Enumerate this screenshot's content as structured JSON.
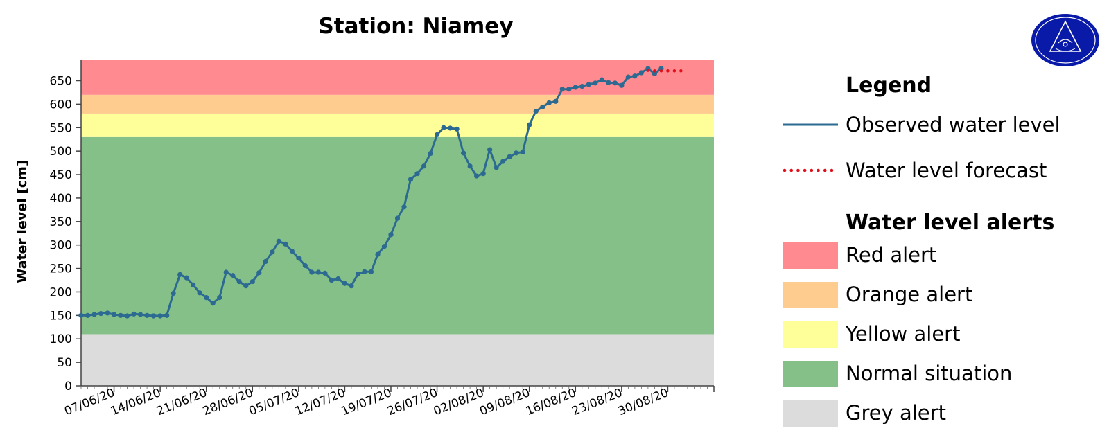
{
  "chart_data": {
    "type": "line",
    "title": "Station: Niamey",
    "xlabel": "",
    "ylabel": "Water level [cm]",
    "ylim": [
      0,
      695
    ],
    "xlim": [
      "2020-06-02",
      "2020-09-06"
    ],
    "y_ticks": [
      0,
      50,
      100,
      150,
      200,
      250,
      300,
      350,
      400,
      450,
      500,
      550,
      600,
      650
    ],
    "x_ticks": [
      {
        "date": "2020-06-07",
        "label": "07/06/20"
      },
      {
        "date": "2020-06-14",
        "label": "14/06/20"
      },
      {
        "date": "2020-06-21",
        "label": "21/06/20"
      },
      {
        "date": "2020-06-28",
        "label": "28/06/20"
      },
      {
        "date": "2020-07-05",
        "label": "05/07/20"
      },
      {
        "date": "2020-07-12",
        "label": "12/07/20"
      },
      {
        "date": "2020-07-19",
        "label": "19/07/20"
      },
      {
        "date": "2020-07-26",
        "label": "26/07/20"
      },
      {
        "date": "2020-08-02",
        "label": "02/08/20"
      },
      {
        "date": "2020-08-09",
        "label": "09/08/20"
      },
      {
        "date": "2020-08-16",
        "label": "16/08/20"
      },
      {
        "date": "2020-08-23",
        "label": "23/08/20"
      },
      {
        "date": "2020-08-30",
        "label": "30/08/20"
      }
    ],
    "alert_bands": [
      {
        "name": "Grey alert",
        "from": 0,
        "to": 110,
        "color": "#dcdcdc"
      },
      {
        "name": "Normal situation",
        "from": 110,
        "to": 530,
        "color": "#84c087"
      },
      {
        "name": "Yellow alert",
        "from": 530,
        "to": 580,
        "color": "#ffff99"
      },
      {
        "name": "Orange alert",
        "from": 580,
        "to": 620,
        "color": "#ffcc90"
      },
      {
        "name": "Red alert",
        "from": 620,
        "to": 695,
        "color": "#ff8a8f"
      }
    ],
    "series": [
      {
        "name": "Observed water level",
        "style": "solid-with-markers",
        "color": "#2c6a92",
        "points": [
          [
            "2020-06-02",
            150
          ],
          [
            "2020-06-03",
            150
          ],
          [
            "2020-06-04",
            152
          ],
          [
            "2020-06-05",
            154
          ],
          [
            "2020-06-06",
            155
          ],
          [
            "2020-06-07",
            152
          ],
          [
            "2020-06-08",
            150
          ],
          [
            "2020-06-09",
            149
          ],
          [
            "2020-06-10",
            153
          ],
          [
            "2020-06-11",
            152
          ],
          [
            "2020-06-12",
            150
          ],
          [
            "2020-06-13",
            149
          ],
          [
            "2020-06-14",
            149
          ],
          [
            "2020-06-15",
            150
          ],
          [
            "2020-06-16",
            197
          ],
          [
            "2020-06-17",
            237
          ],
          [
            "2020-06-18",
            230
          ],
          [
            "2020-06-19",
            215
          ],
          [
            "2020-06-20",
            198
          ],
          [
            "2020-06-21",
            188
          ],
          [
            "2020-06-22",
            176
          ],
          [
            "2020-06-23",
            188
          ],
          [
            "2020-06-24",
            242
          ],
          [
            "2020-06-25",
            235
          ],
          [
            "2020-06-26",
            222
          ],
          [
            "2020-06-27",
            213
          ],
          [
            "2020-06-28",
            222
          ],
          [
            "2020-06-29",
            241
          ],
          [
            "2020-06-30",
            265
          ],
          [
            "2020-07-01",
            285
          ],
          [
            "2020-07-02",
            308
          ],
          [
            "2020-07-03",
            302
          ],
          [
            "2020-07-04",
            287
          ],
          [
            "2020-07-05",
            272
          ],
          [
            "2020-07-06",
            256
          ],
          [
            "2020-07-07",
            242
          ],
          [
            "2020-07-08",
            242
          ],
          [
            "2020-07-09",
            240
          ],
          [
            "2020-07-10",
            225
          ],
          [
            "2020-07-11",
            228
          ],
          [
            "2020-07-12",
            218
          ],
          [
            "2020-07-13",
            213
          ],
          [
            "2020-07-14",
            238
          ],
          [
            "2020-07-15",
            243
          ],
          [
            "2020-07-16",
            243
          ],
          [
            "2020-07-17",
            280
          ],
          [
            "2020-07-18",
            297
          ],
          [
            "2020-07-19",
            322
          ],
          [
            "2020-07-20",
            357
          ],
          [
            "2020-07-21",
            381
          ],
          [
            "2020-07-22",
            440
          ],
          [
            "2020-07-23",
            452
          ],
          [
            "2020-07-24",
            468
          ],
          [
            "2020-07-25",
            495
          ],
          [
            "2020-07-26",
            535
          ],
          [
            "2020-07-27",
            550
          ],
          [
            "2020-07-28",
            549
          ],
          [
            "2020-07-29",
            547
          ],
          [
            "2020-07-30",
            496
          ],
          [
            "2020-07-31",
            468
          ],
          [
            "2020-08-01",
            447
          ],
          [
            "2020-08-02",
            452
          ],
          [
            "2020-08-03",
            503
          ],
          [
            "2020-08-04",
            465
          ],
          [
            "2020-08-05",
            478
          ],
          [
            "2020-08-06",
            488
          ],
          [
            "2020-08-07",
            496
          ],
          [
            "2020-08-08",
            498
          ],
          [
            "2020-08-09",
            556
          ],
          [
            "2020-08-10",
            585
          ],
          [
            "2020-08-11",
            594
          ],
          [
            "2020-08-12",
            603
          ],
          [
            "2020-08-13",
            606
          ],
          [
            "2020-08-14",
            632
          ],
          [
            "2020-08-15",
            632
          ],
          [
            "2020-08-16",
            636
          ],
          [
            "2020-08-17",
            638
          ],
          [
            "2020-08-18",
            642
          ],
          [
            "2020-08-19",
            645
          ],
          [
            "2020-08-20",
            652
          ],
          [
            "2020-08-21",
            646
          ],
          [
            "2020-08-22",
            645
          ],
          [
            "2020-08-23",
            640
          ],
          [
            "2020-08-24",
            658
          ],
          [
            "2020-08-25",
            660
          ],
          [
            "2020-08-26",
            667
          ],
          [
            "2020-08-27",
            676
          ],
          [
            "2020-08-28",
            665
          ],
          [
            "2020-08-29",
            676
          ]
        ]
      },
      {
        "name": "Water level forecast",
        "style": "dotted",
        "color": "#e0101c",
        "points": [
          [
            "2020-08-27",
            672
          ],
          [
            "2020-08-28",
            671
          ],
          [
            "2020-08-29",
            671
          ],
          [
            "2020-08-30",
            671
          ],
          [
            "2020-08-31",
            671
          ],
          [
            "2020-09-01",
            671
          ]
        ]
      }
    ],
    "legend_placement": "right",
    "grid": false
  },
  "legend": {
    "heading": "Legend",
    "series": [
      {
        "label": "Observed water level",
        "color": "#2c6a92",
        "style": "solid"
      },
      {
        "label": "Water level forecast",
        "color": "#e0101c",
        "style": "dotted"
      }
    ],
    "alerts_heading": "Water level alerts",
    "alerts": [
      {
        "label": "Red alert",
        "color": "#ff8a8f"
      },
      {
        "label": "Orange alert",
        "color": "#ffcc90"
      },
      {
        "label": "Yellow alert",
        "color": "#ffff99"
      },
      {
        "label": "Normal situation",
        "color": "#84c087"
      },
      {
        "label": "Grey alert",
        "color": "#dcdcdc"
      }
    ]
  },
  "logo": {
    "icon": "agency-seal-icon",
    "color": "#0a1aa8"
  }
}
